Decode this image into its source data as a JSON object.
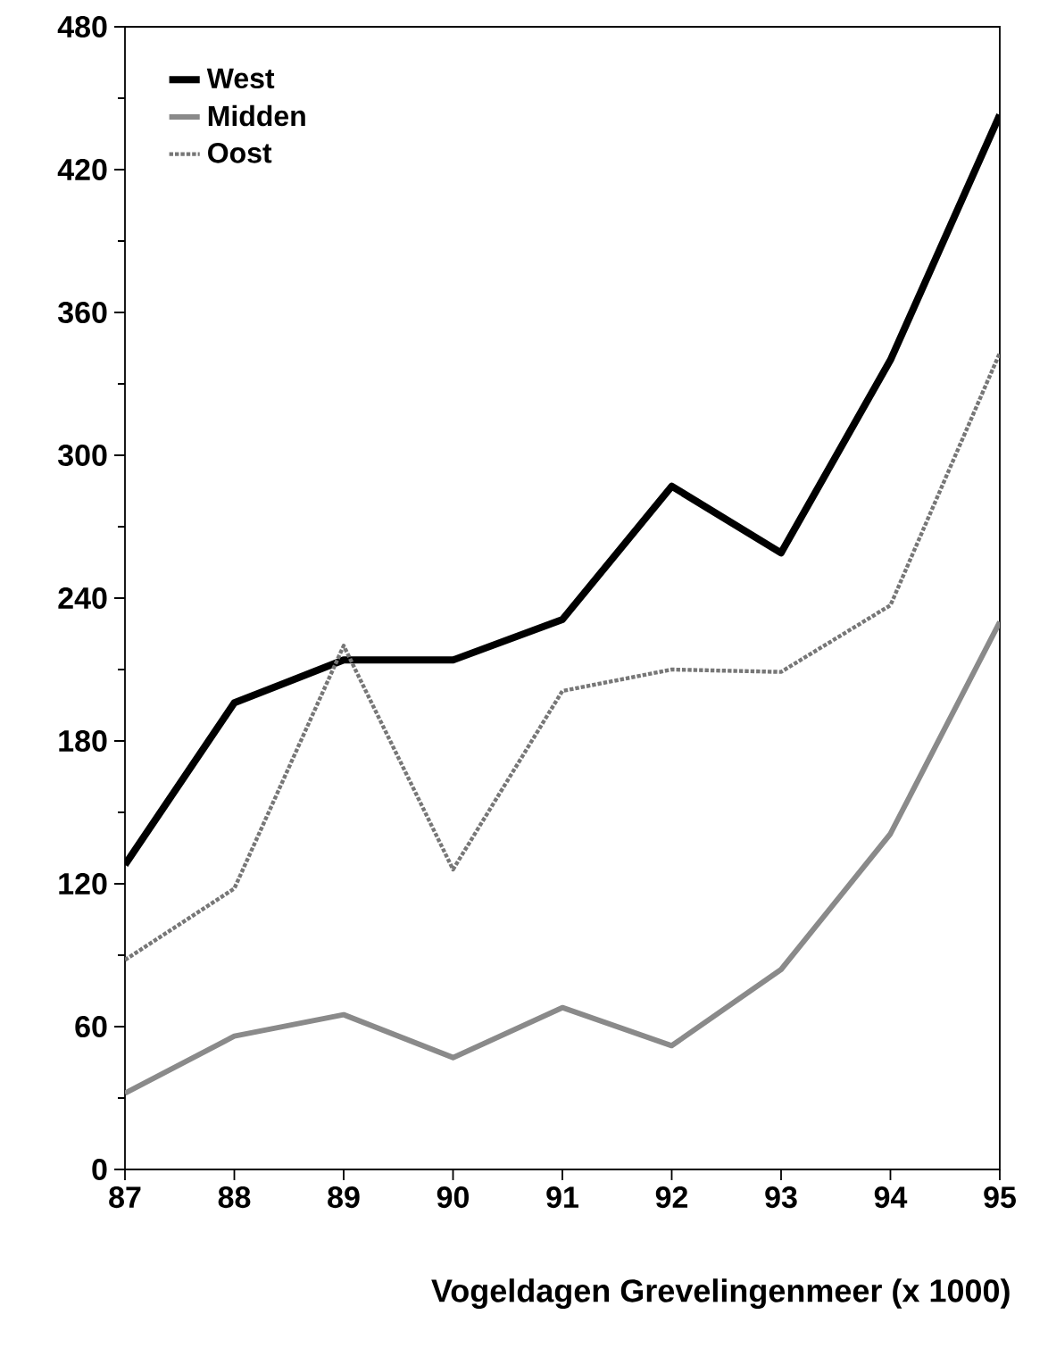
{
  "chart_data": {
    "type": "line",
    "xlabel": "Vogeldagen Grevelingenmeer (x 1000)",
    "x": [
      87,
      88,
      89,
      90,
      91,
      92,
      93,
      94,
      95
    ],
    "xlim": [
      87,
      95
    ],
    "xticks": [
      87,
      88,
      89,
      90,
      91,
      92,
      93,
      94,
      95
    ],
    "ylim": [
      0,
      480
    ],
    "yticks": [
      0,
      60,
      120,
      180,
      240,
      300,
      360,
      420,
      480
    ],
    "legend": "top left",
    "grid": false,
    "series": [
      {
        "name": "West",
        "color": "#000000",
        "line_style": "solid",
        "values": [
          128,
          196,
          214,
          214,
          231,
          287,
          259,
          340,
          443
        ]
      },
      {
        "name": "Midden",
        "color": "#8a8a8a",
        "line_style": "solid",
        "values": [
          32,
          56,
          65,
          47,
          68,
          52,
          84,
          141,
          230
        ]
      },
      {
        "name": "Oost",
        "color": "#777777",
        "line_style": "dotted",
        "values": [
          88,
          118,
          220,
          126,
          201,
          210,
          209,
          237,
          343
        ]
      }
    ]
  }
}
